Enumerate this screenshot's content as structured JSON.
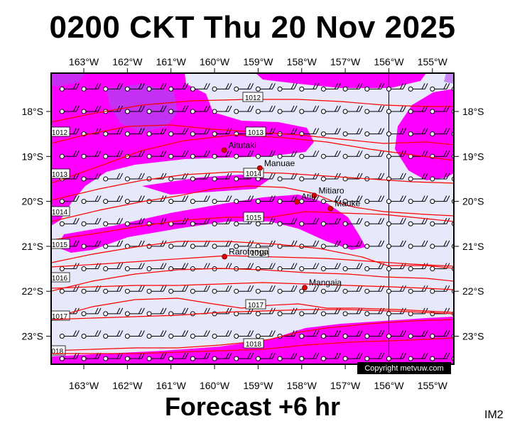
{
  "title": "0200 CKT Thu 20 Nov 2025",
  "footer": "Forecast +6 hr",
  "corner_tag": "IM2",
  "copyright": "Copyright metvuw.com",
  "colors": {
    "background": "#e8e8fb",
    "rain_light": "#ff00ff",
    "rain_heavy": "#b040f0",
    "isobar": "#ff0000",
    "frame": "#000000"
  },
  "axes": {
    "lon_ticks": [
      "163°W",
      "162°W",
      "161°W",
      "160°W",
      "159°W",
      "158°W",
      "157°W",
      "156°W",
      "155°W"
    ],
    "lat_ticks": [
      "18°S",
      "19°S",
      "20°S",
      "21°S",
      "22°S",
      "23°S"
    ]
  },
  "places": [
    {
      "name": "Aitutaki",
      "lon": -159.78,
      "lat": -18.86
    },
    {
      "name": "Manuae",
      "lon": -158.96,
      "lat": -19.26
    },
    {
      "name": "Mitiaro",
      "lon": -157.71,
      "lat": -19.87
    },
    {
      "name": "Atiu",
      "lon": -158.11,
      "lat": -20.01
    },
    {
      "name": "Mauke",
      "lon": -157.34,
      "lat": -20.16
    },
    {
      "name": "Rarotonga",
      "lon": -159.77,
      "lat": -21.23
    },
    {
      "name": "Mangaia",
      "lon": -157.93,
      "lat": -21.92
    }
  ],
  "isobars": [
    {
      "label": "1012"
    },
    {
      "label": "1012"
    },
    {
      "label": "1013"
    },
    {
      "label": "1013"
    },
    {
      "label": "1014"
    },
    {
      "label": "1014"
    },
    {
      "label": "1015"
    },
    {
      "label": "1015"
    },
    {
      "label": "1016"
    },
    {
      "label": "1016"
    },
    {
      "label": "1017"
    },
    {
      "label": "1017"
    },
    {
      "label": "1018"
    },
    {
      "label": "1018"
    }
  ],
  "wind_barbs": {
    "lon_start": -163.5,
    "lon_end": -154.5,
    "lon_step": 0.5,
    "lat_start": -17.5,
    "lat_end": -23.5,
    "lat_step": 0.5,
    "direction": "easterly",
    "typical_kt": 15
  }
}
